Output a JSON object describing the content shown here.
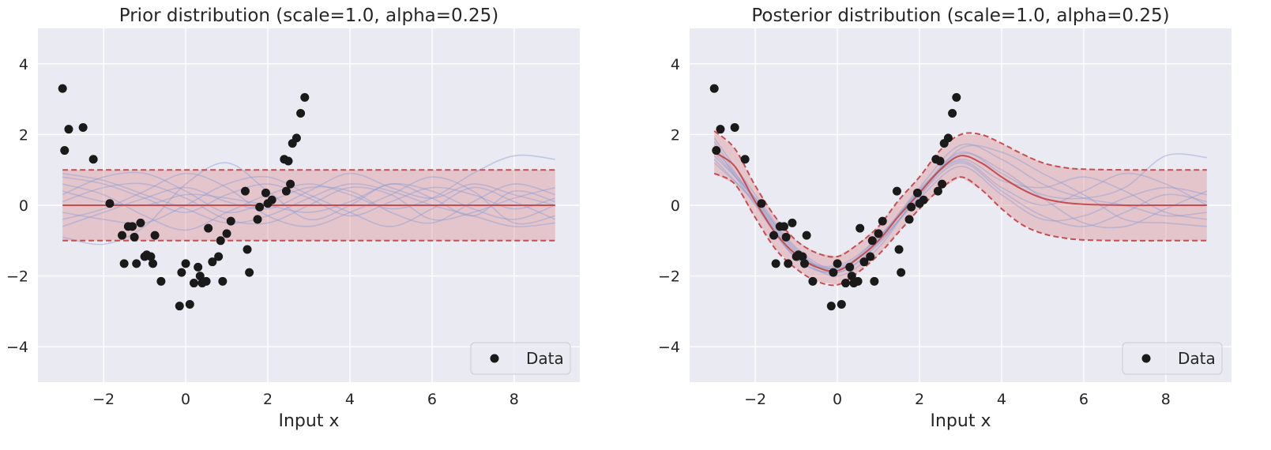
{
  "chart_data": [
    {
      "type": "line",
      "title": "Prior distribution (scale=1.0, alpha=0.25)",
      "xlabel": "Input x",
      "ylabel": "",
      "xlim": [
        -3.6,
        9.6
      ],
      "ylim": [
        -5,
        5
      ],
      "xticks": [
        -2,
        0,
        2,
        4,
        6,
        8
      ],
      "xtick_labels": [
        "−2",
        "0",
        "2",
        "4",
        "6",
        "8"
      ],
      "yticks": [
        -4,
        -2,
        0,
        2,
        4
      ],
      "ytick_labels": [
        "−4",
        "−2",
        "0",
        "2",
        "4"
      ],
      "legend": [
        "Data"
      ],
      "legend_position": "lower-right",
      "band": {
        "x": [
          -3,
          9
        ],
        "mean": [
          0,
          0
        ],
        "upper": [
          1,
          1
        ],
        "lower": [
          -1,
          -1
        ]
      },
      "samples": [
        {
          "x": [
            -3,
            -2,
            -1,
            0,
            1,
            2,
            3,
            4,
            5,
            6,
            7,
            8,
            9
          ],
          "y": [
            0.8,
            0.6,
            0.2,
            -0.2,
            0.3,
            0.6,
            0.2,
            -0.3,
            0.1,
            0.5,
            0.3,
            -0.1,
            0.2
          ]
        },
        {
          "x": [
            -3,
            -2,
            -1,
            0,
            1,
            2,
            3,
            4,
            5,
            6,
            7,
            8,
            9
          ],
          "y": [
            -0.9,
            -1.1,
            -0.6,
            0.6,
            1.2,
            0.4,
            -0.4,
            0.0,
            0.6,
            0.2,
            -0.3,
            0.4,
            0.1
          ]
        },
        {
          "x": [
            -3,
            -2,
            -1,
            0,
            1,
            2,
            3,
            4,
            5,
            6,
            7,
            8,
            9
          ],
          "y": [
            0.3,
            0.8,
            0.9,
            0.4,
            -0.2,
            0.1,
            0.5,
            0.4,
            -0.2,
            -0.5,
            0.1,
            0.6,
            0.3
          ]
        },
        {
          "x": [
            -3,
            -2,
            -1,
            0,
            1,
            2,
            3,
            4,
            5,
            6,
            7,
            8,
            9
          ],
          "y": [
            -0.4,
            -0.1,
            0.4,
            0.9,
            0.5,
            -0.3,
            -0.6,
            -0.2,
            0.3,
            0.8,
            0.4,
            -0.5,
            -0.3
          ]
        },
        {
          "x": [
            -3,
            -2,
            -1,
            0,
            1,
            2,
            3,
            4,
            5,
            6,
            7,
            8,
            9
          ],
          "y": [
            0.6,
            0.3,
            -0.3,
            -0.7,
            -0.2,
            0.3,
            0.6,
            0.3,
            -0.1,
            0.2,
            0.9,
            1.4,
            1.3
          ]
        },
        {
          "x": [
            -3,
            -2,
            -1,
            0,
            1,
            2,
            3,
            4,
            5,
            6,
            7,
            8,
            9
          ],
          "y": [
            0.1,
            0.5,
            0.6,
            0.2,
            -0.4,
            -0.5,
            0.0,
            0.5,
            0.3,
            -0.4,
            -0.2,
            0.2,
            0.5
          ]
        },
        {
          "x": [
            -3,
            -2,
            -1,
            0,
            1,
            2,
            3,
            4,
            5,
            6,
            7,
            8,
            9
          ],
          "y": [
            -0.2,
            -0.4,
            -0.5,
            0.0,
            0.6,
            0.8,
            0.3,
            -0.2,
            -0.6,
            -0.1,
            0.5,
            0.1,
            -0.4
          ]
        },
        {
          "x": [
            -3,
            -2,
            -1,
            0,
            1,
            2,
            3,
            4,
            5,
            6,
            7,
            8,
            9
          ],
          "y": [
            0.4,
            0.1,
            0.0,
            0.3,
            0.2,
            0.0,
            -0.2,
            0.1,
            0.6,
            0.4,
            -0.1,
            -0.4,
            0.0
          ]
        },
        {
          "x": [
            -3,
            -2,
            -1,
            0,
            1,
            2,
            3,
            4,
            5,
            6,
            7,
            8,
            9
          ],
          "y": [
            0.9,
            0.7,
            0.3,
            -0.1,
            -0.5,
            -0.3,
            0.2,
            0.6,
            0.4,
            0.0,
            -0.3,
            -0.6,
            -0.5
          ]
        },
        {
          "x": [
            -3,
            -2,
            -1,
            0,
            1,
            2,
            3,
            4,
            5,
            6,
            7,
            8,
            9
          ],
          "y": [
            -0.6,
            -0.2,
            0.2,
            0.5,
            0.1,
            -0.1,
            0.4,
            0.9,
            0.5,
            0.2,
            0.6,
            0.3,
            0.0
          ]
        }
      ],
      "points": {
        "x": [
          -3.0,
          -2.95,
          -2.85,
          -2.5,
          -2.25,
          -1.85,
          -1.55,
          -1.5,
          -1.4,
          -1.3,
          -1.25,
          -1.2,
          -1.1,
          -1.0,
          -0.95,
          -0.85,
          -0.8,
          -0.75,
          -0.6,
          -0.15,
          -0.1,
          0.0,
          0.1,
          0.2,
          0.3,
          0.35,
          0.4,
          0.5,
          0.55,
          0.65,
          0.8,
          0.85,
          0.9,
          1.0,
          1.1,
          1.45,
          1.5,
          1.55,
          1.75,
          1.8,
          1.95,
          2.0,
          2.1,
          2.4,
          2.45,
          2.5,
          2.55,
          2.6,
          2.7,
          2.8,
          2.9
        ],
        "y": [
          3.3,
          1.55,
          2.15,
          2.2,
          1.3,
          0.05,
          -0.85,
          -1.65,
          -0.6,
          -0.6,
          -0.9,
          -1.65,
          -0.5,
          -1.45,
          -1.4,
          -1.45,
          -1.65,
          -0.85,
          -2.15,
          -2.85,
          -1.9,
          -1.65,
          -2.8,
          -2.2,
          -1.75,
          -2.0,
          -2.2,
          -2.15,
          -0.65,
          -1.6,
          -1.45,
          -1.0,
          -2.15,
          -0.8,
          -0.45,
          0.4,
          -1.25,
          -1.9,
          -0.4,
          -0.05,
          0.35,
          0.05,
          0.15,
          1.3,
          0.4,
          1.25,
          0.6,
          1.75,
          1.9,
          2.6,
          3.05
        ]
      }
    },
    {
      "type": "line",
      "title": "Posterior distribution (scale=1.0, alpha=0.25)",
      "xlabel": "Input x",
      "ylabel": "",
      "xlim": [
        -3.6,
        9.6
      ],
      "ylim": [
        -5,
        5
      ],
      "xticks": [
        -2,
        0,
        2,
        4,
        6,
        8
      ],
      "xtick_labels": [
        "−2",
        "0",
        "2",
        "4",
        "6",
        "8"
      ],
      "yticks": [
        -4,
        -2,
        0,
        2,
        4
      ],
      "ytick_labels": [
        "−4",
        "−2",
        "0",
        "2",
        "4"
      ],
      "legend": [
        "Data"
      ],
      "legend_position": "lower-right",
      "band": {
        "x": [
          -3,
          -2.5,
          -2,
          -1.5,
          -1,
          -0.5,
          0,
          0.5,
          1,
          1.5,
          2,
          2.5,
          3,
          3.5,
          4,
          4.5,
          5,
          5.5,
          6,
          7,
          8,
          9
        ],
        "mean": [
          1.5,
          1.1,
          0.1,
          -0.8,
          -1.4,
          -1.75,
          -1.85,
          -1.5,
          -1.0,
          -0.3,
          0.35,
          1.0,
          1.4,
          1.2,
          0.8,
          0.45,
          0.2,
          0.08,
          0.03,
          0.0,
          0.0,
          0.0
        ],
        "upper": [
          2.1,
          1.6,
          0.55,
          -0.35,
          -1.0,
          -1.35,
          -1.45,
          -1.1,
          -0.6,
          0.15,
          0.8,
          1.55,
          2.0,
          2.0,
          1.75,
          1.45,
          1.2,
          1.07,
          1.02,
          1.0,
          1.0,
          1.0
        ],
        "lower": [
          0.9,
          0.6,
          -0.35,
          -1.25,
          -1.8,
          -2.15,
          -2.25,
          -1.9,
          -1.4,
          -0.75,
          -0.1,
          0.45,
          0.8,
          0.45,
          -0.1,
          -0.55,
          -0.8,
          -0.92,
          -0.98,
          -1.0,
          -1.0,
          -1.0
        ]
      },
      "samples": [
        {
          "x": [
            -3,
            -2,
            -1,
            0,
            1,
            2,
            3,
            4,
            5,
            6,
            7,
            8,
            9
          ],
          "y": [
            1.4,
            0.2,
            -1.3,
            -1.8,
            -0.9,
            0.4,
            1.5,
            0.9,
            0.3,
            0.2,
            0.5,
            1.4,
            1.35
          ]
        },
        {
          "x": [
            -3,
            -2,
            -1,
            0,
            1,
            2,
            3,
            4,
            5,
            6,
            7,
            8,
            9
          ],
          "y": [
            1.7,
            0.0,
            -1.5,
            -1.9,
            -1.1,
            0.3,
            1.2,
            0.4,
            -0.3,
            -0.6,
            -0.2,
            0.3,
            0.1
          ]
        },
        {
          "x": [
            -3,
            -2,
            -1,
            0,
            1,
            2,
            3,
            4,
            5,
            6,
            7,
            8,
            9
          ],
          "y": [
            1.2,
            0.1,
            -1.4,
            -1.7,
            -0.9,
            0.5,
            1.7,
            1.3,
            0.6,
            0.2,
            0.0,
            -0.3,
            -0.2
          ]
        },
        {
          "x": [
            -3,
            -2,
            -1,
            0,
            1,
            2,
            3,
            4,
            5,
            6,
            7,
            8,
            9
          ],
          "y": [
            1.9,
            0.3,
            -1.2,
            -1.8,
            -1.0,
            0.2,
            1.1,
            0.3,
            -0.4,
            -0.3,
            0.2,
            0.5,
            0.3
          ]
        },
        {
          "x": [
            -3,
            -2,
            -1,
            0,
            1,
            2,
            3,
            4,
            5,
            6,
            7,
            8,
            9
          ],
          "y": [
            1.5,
            0.15,
            -1.35,
            -2.0,
            -1.2,
            0.35,
            1.45,
            1.0,
            0.2,
            -0.5,
            -0.6,
            -0.1,
            0.4
          ]
        },
        {
          "x": [
            -3,
            -2,
            -1,
            0,
            1,
            2,
            3,
            4,
            5,
            6,
            7,
            8,
            9
          ],
          "y": [
            1.3,
            0.05,
            -1.45,
            -1.75,
            -1.0,
            0.45,
            1.3,
            0.7,
            0.5,
            0.8,
            0.4,
            -0.2,
            -0.4
          ]
        },
        {
          "x": [
            -3,
            -2,
            -1,
            0,
            1,
            2,
            3,
            4,
            5,
            6,
            7,
            8,
            9
          ],
          "y": [
            1.6,
            0.2,
            -1.25,
            -1.9,
            -1.05,
            0.25,
            1.6,
            1.5,
            0.9,
            0.3,
            -0.4,
            -0.5,
            -0.6
          ]
        },
        {
          "x": [
            -3,
            -2,
            -1,
            0,
            1,
            2,
            3,
            4,
            5,
            6,
            7,
            8,
            9
          ],
          "y": [
            1.8,
            0.1,
            -1.5,
            -1.85,
            -0.95,
            0.4,
            1.25,
            0.5,
            0.0,
            0.4,
            0.9,
            0.6,
            0.0
          ]
        }
      ],
      "points": {
        "x": [
          -3.0,
          -2.95,
          -2.85,
          -2.5,
          -2.25,
          -1.85,
          -1.55,
          -1.5,
          -1.4,
          -1.3,
          -1.25,
          -1.2,
          -1.1,
          -1.0,
          -0.95,
          -0.85,
          -0.8,
          -0.75,
          -0.6,
          -0.15,
          -0.1,
          0.0,
          0.1,
          0.2,
          0.3,
          0.35,
          0.4,
          0.5,
          0.55,
          0.65,
          0.8,
          0.85,
          0.9,
          1.0,
          1.1,
          1.45,
          1.5,
          1.55,
          1.75,
          1.8,
          1.95,
          2.0,
          2.1,
          2.4,
          2.45,
          2.5,
          2.55,
          2.6,
          2.7,
          2.8,
          2.9
        ],
        "y": [
          3.3,
          1.55,
          2.15,
          2.2,
          1.3,
          0.05,
          -0.85,
          -1.65,
          -0.6,
          -0.6,
          -0.9,
          -1.65,
          -0.5,
          -1.45,
          -1.4,
          -1.45,
          -1.65,
          -0.85,
          -2.15,
          -2.85,
          -1.9,
          -1.65,
          -2.8,
          -2.2,
          -1.75,
          -2.0,
          -2.2,
          -2.15,
          -0.65,
          -1.6,
          -1.45,
          -1.0,
          -2.15,
          -0.8,
          -0.45,
          0.4,
          -1.25,
          -1.9,
          -0.4,
          -0.05,
          0.35,
          0.05,
          0.15,
          1.3,
          0.4,
          1.25,
          0.6,
          1.75,
          1.9,
          2.6,
          3.05
        ]
      }
    }
  ],
  "colors": {
    "axes_bg": "#eaeaf2",
    "grid": "#ffffff",
    "band_fill": "#d9888e",
    "band_edge": "#c44e52",
    "mean_line": "#c44e52",
    "sample_line": "#8c9dd1",
    "points": "#1a1a1a",
    "text": "#262626"
  }
}
